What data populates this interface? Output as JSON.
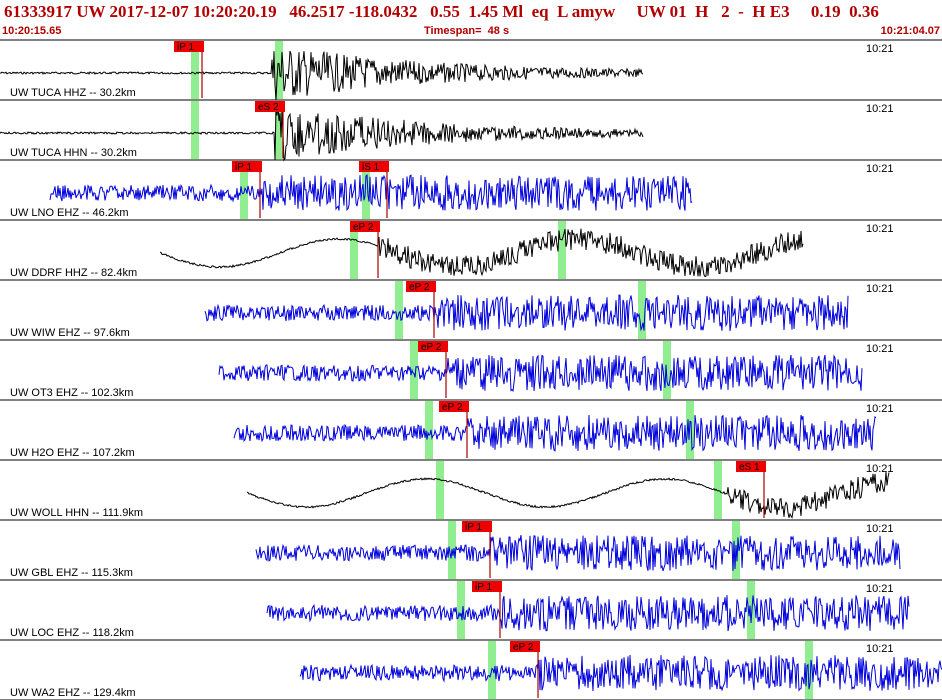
{
  "header": {
    "title": "61333917 UW 2017-12-07 10:20:20.19   46.2517 -118.0432   0.55  1.45 Ml  eq  L amyw     UW 01  H   2  -  H E3     0.19  0.36",
    "start_time": "10:20:15.65",
    "timespan": "Timespan=  48 s",
    "end_time": "10:21:04.07"
  },
  "colors": {
    "header_text": "#b00000",
    "trace_black": "#000000",
    "trace_blue": "#0000dd",
    "pick_box": "#ee0000",
    "pick_line": "#aa0000",
    "window_band": "#90ee90",
    "divider": "#000000"
  },
  "channels": [
    {
      "label": "UW TUCA HHZ -- 30.2km",
      "time": "10:21",
      "color": "black",
      "picks": [
        {
          "label": "iP 1",
          "pos": 0.214
        }
      ],
      "bands": [
        0.207,
        0.296
      ],
      "start": 0.0,
      "end": 0.683,
      "onset": 0.289,
      "style": "quake"
    },
    {
      "label": "UW TUCA HHN -- 30.2km",
      "time": "10:21",
      "color": "black",
      "picks": [
        {
          "label": "eS 2",
          "pos": 0.3
        }
      ],
      "bands": [
        0.207,
        0.296
      ],
      "start": 0.0,
      "end": 0.683,
      "onset": 0.292,
      "style": "quake"
    },
    {
      "label": "UW LNO EHZ -- 46.2km",
      "time": "10:21",
      "color": "blue",
      "picks": [
        {
          "label": "iP 1",
          "pos": 0.276
        },
        {
          "label": "iS 1",
          "pos": 0.411
        }
      ],
      "bands": [
        0.259,
        0.389
      ],
      "start": 0.053,
      "end": 0.735,
      "onset": 0.276,
      "style": "noise"
    },
    {
      "label": "UW DDRF HHZ -- 82.4km",
      "time": "10:21",
      "color": "black",
      "picks": [
        {
          "label": "eP 2",
          "pos": 0.401
        }
      ],
      "bands": [
        0.376,
        0.597
      ],
      "start": 0.17,
      "end": 0.852,
      "onset": 0.401,
      "style": "wave"
    },
    {
      "label": "UW WIW EHZ -- 97.6km",
      "time": "10:21",
      "color": "blue",
      "picks": [
        {
          "label": "eP 2",
          "pos": 0.461
        }
      ],
      "bands": [
        0.424,
        0.682
      ],
      "start": 0.218,
      "end": 0.9,
      "onset": 0.461,
      "style": "noise"
    },
    {
      "label": "UW OT3 EHZ -- 102.3km",
      "time": "10:21",
      "color": "blue",
      "picks": [
        {
          "label": "eP 2",
          "pos": 0.473
        }
      ],
      "bands": [
        0.439,
        0.708
      ],
      "start": 0.233,
      "end": 0.915,
      "onset": 0.473,
      "style": "noise"
    },
    {
      "label": "UW H2O EHZ -- 107.2km",
      "time": "10:21",
      "color": "blue",
      "picks": [
        {
          "label": "eP 2",
          "pos": 0.496
        }
      ],
      "bands": [
        0.455,
        0.733
      ],
      "start": 0.248,
      "end": 0.93,
      "onset": 0.496,
      "style": "noise"
    },
    {
      "label": "UW WOLL HHN -- 111.9km",
      "time": "10:21",
      "color": "black",
      "picks": [
        {
          "label": "eS 1",
          "pos": 0.811
        }
      ],
      "bands": [
        0.467,
        0.762
      ],
      "start": 0.262,
      "end": 0.944,
      "onset": 0.772,
      "style": "wave"
    },
    {
      "label": "UW GBL EHZ -- 115.3km",
      "time": "10:21",
      "color": "blue",
      "picks": [
        {
          "label": "iP 1",
          "pos": 0.52
        }
      ],
      "bands": [
        0.48,
        0.781
      ],
      "start": 0.272,
      "end": 0.955,
      "onset": 0.52,
      "style": "noise"
    },
    {
      "label": "UW LOC EHZ -- 118.2km",
      "time": "10:21",
      "color": "blue",
      "picks": [
        {
          "label": "iP 1",
          "pos": 0.531
        }
      ],
      "bands": [
        0.489,
        0.797
      ],
      "start": 0.283,
      "end": 0.965,
      "onset": 0.531,
      "style": "noise"
    },
    {
      "label": "UW WA2 EHZ -- 129.4km",
      "time": "10:21",
      "color": "blue",
      "picks": [
        {
          "label": "eP 2",
          "pos": 0.571
        }
      ],
      "bands": [
        0.522,
        0.859
      ],
      "start": 0.318,
      "end": 1.0,
      "onset": 0.571,
      "style": "noise"
    }
  ]
}
